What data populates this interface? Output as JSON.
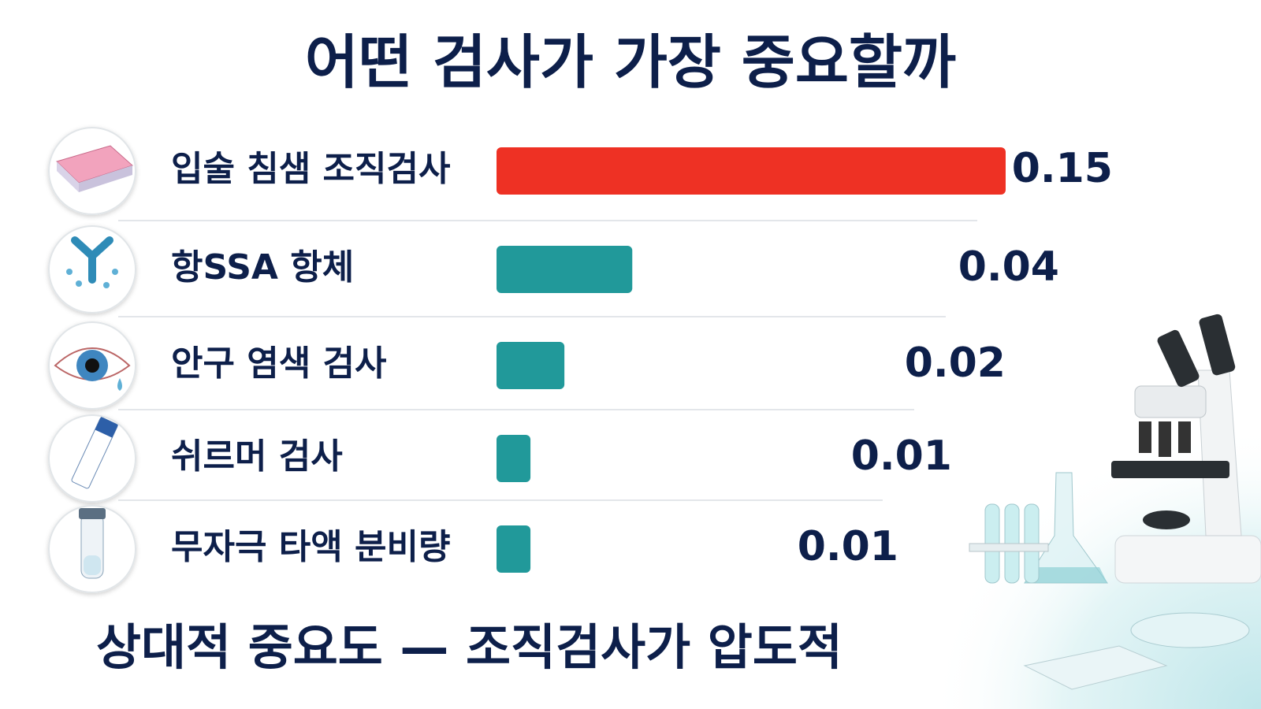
{
  "chart_data": {
    "type": "bar",
    "orientation": "horizontal",
    "title": "어떤 검사가 가장 중요할까",
    "subtitle": "상대적 중요도 — 조직검사가 압도적",
    "categories": [
      "입술 침샘 조직검사",
      "항SSA 항체",
      "안구 염색 검사",
      "쉬르머 검사",
      "무자극 타액 분비량"
    ],
    "values": [
      0.15,
      0.04,
      0.02,
      0.01,
      0.01
    ],
    "colors": [
      "#ee3124",
      "#21999a",
      "#21999a",
      "#21999a",
      "#21999a"
    ]
  }
}
